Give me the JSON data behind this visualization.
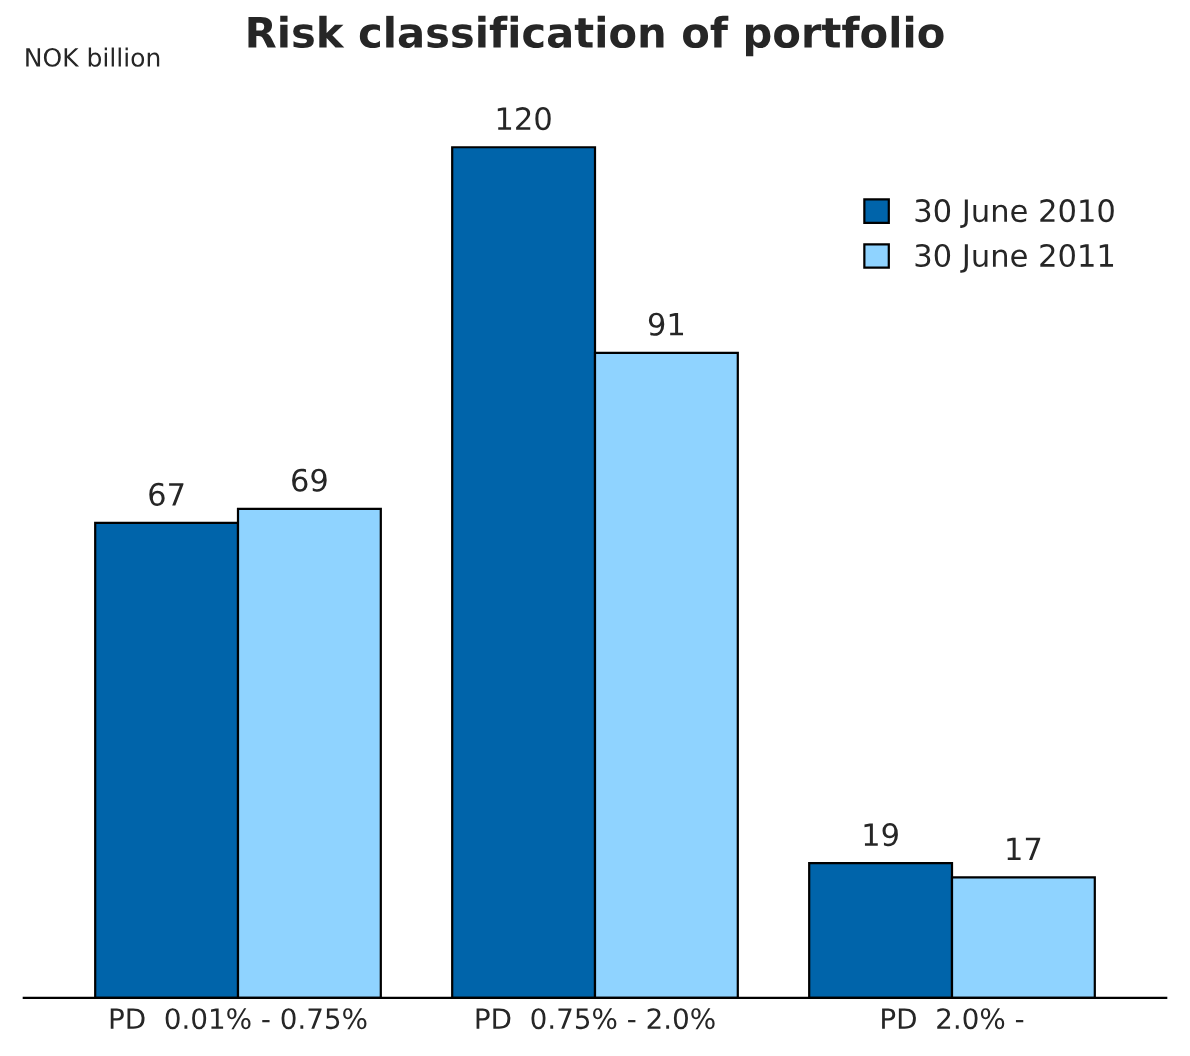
{
  "chart_data": {
    "type": "bar",
    "title": "Risk classification of portfolio",
    "ylabel": "NOK billion",
    "categories": [
      "PD  0.01% - 0.75%",
      "PD  0.75% - 2.0%",
      "PD  2.0% -"
    ],
    "series": [
      {
        "name": "30 June 2010",
        "color": "#0064aa",
        "values": [
          67,
          120,
          19
        ]
      },
      {
        "name": "30 June 2011",
        "color": "#8fd3ff",
        "values": [
          69,
          91,
          17
        ]
      }
    ],
    "data_labels": true,
    "legend": "top right",
    "grid": false
  }
}
